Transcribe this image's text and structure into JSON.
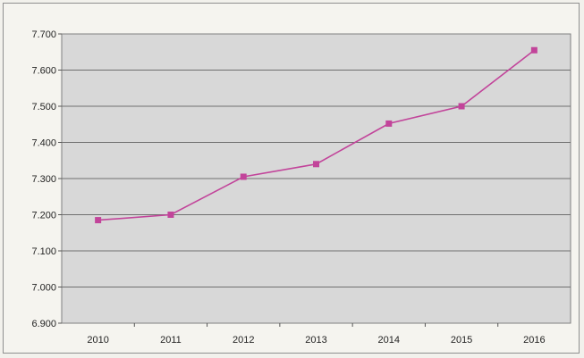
{
  "chart_data": {
    "type": "line",
    "title": "",
    "xlabel": "",
    "ylabel": "",
    "categories": [
      "2010",
      "2011",
      "2012",
      "2013",
      "2014",
      "2015",
      "2016"
    ],
    "series": [
      {
        "values": [
          7185,
          7200,
          7305,
          7340,
          7452,
          7500,
          7655
        ]
      }
    ],
    "ylim": [
      6900,
      7700
    ],
    "yticks": [
      6900,
      7000,
      7100,
      7200,
      7300,
      7400,
      7500,
      7600,
      7700
    ],
    "ytick_labels": [
      "6.900",
      "7.000",
      "7.100",
      "7.200",
      "7.300",
      "7.400",
      "7.500",
      "7.600",
      "7.700"
    ],
    "grid": true,
    "legend": "none",
    "colors": {
      "series": "#c2449a",
      "plot_background": "#d8d8d8",
      "grid": "#6f6f6f"
    }
  }
}
